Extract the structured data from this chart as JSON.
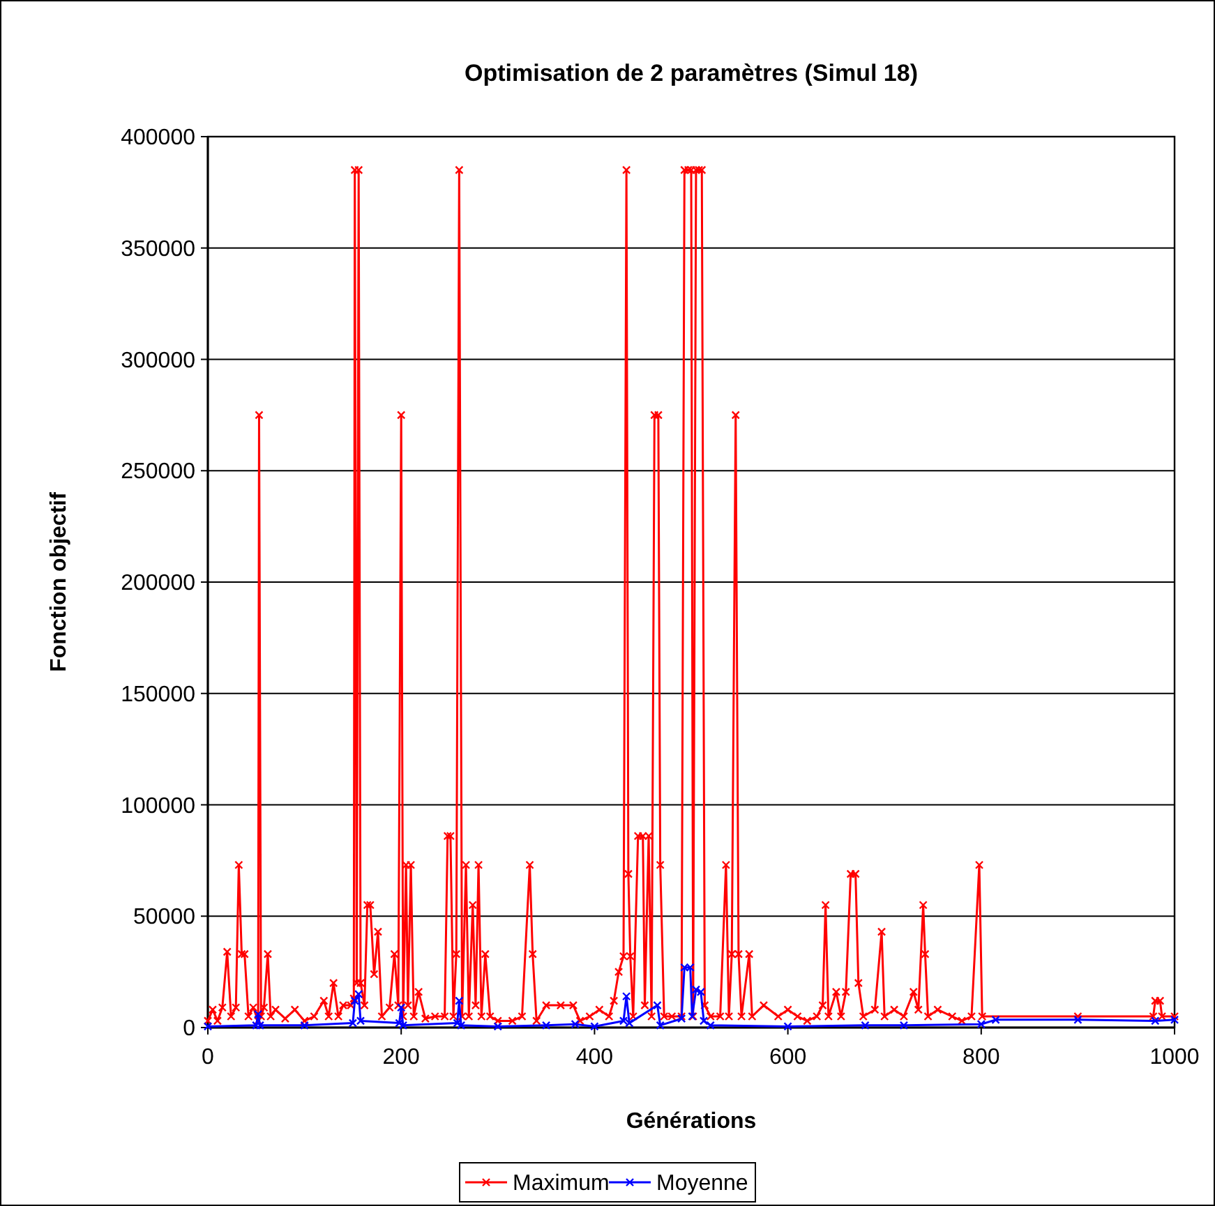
{
  "chart_data": {
    "type": "line",
    "title": "Optimisation de 2 paramètres (Simul 18)",
    "xlabel": "Générations",
    "ylabel": "Fonction objectif",
    "xlim": [
      0,
      1000
    ],
    "xticks": [
      0,
      200,
      400,
      600,
      800,
      1000
    ],
    "ylim": [
      0,
      400000
    ],
    "yticks": [
      0,
      50000,
      100000,
      150000,
      200000,
      250000,
      300000,
      350000,
      400000
    ],
    "grid": "y",
    "legend": "bottom",
    "marker": "cross",
    "line_style": "solid",
    "series": [
      {
        "name": "Maximum",
        "color": "#ff0000",
        "x": [
          0,
          5,
          10,
          15,
          20,
          24,
          29,
          32,
          35,
          38,
          42,
          47,
          52,
          53,
          55,
          58,
          62,
          65,
          70,
          80,
          90,
          100,
          110,
          120,
          125,
          130,
          135,
          140,
          148,
          151,
          152,
          154,
          156,
          158,
          162,
          165,
          168,
          172,
          176,
          180,
          188,
          193,
          197,
          200,
          202,
          205,
          207,
          210,
          213,
          218,
          225,
          235,
          245,
          248,
          251,
          254,
          257,
          260,
          263,
          267,
          270,
          274,
          277,
          280,
          283,
          287,
          292,
          300,
          315,
          325,
          333,
          336,
          340,
          350,
          365,
          378,
          385,
          395,
          405,
          415,
          420,
          425,
          430,
          433,
          435,
          437,
          440,
          445,
          450,
          452,
          456,
          459,
          462,
          466,
          468,
          472,
          480,
          490,
          493,
          497,
          500,
          502,
          505,
          508,
          511,
          514,
          520,
          530,
          536,
          539,
          542,
          546,
          549,
          552,
          560,
          563,
          575,
          590,
          600,
          610,
          620,
          630,
          636,
          639,
          642,
          650,
          655,
          660,
          665,
          670,
          673,
          678,
          690,
          697,
          700,
          710,
          720,
          730,
          735,
          740,
          742,
          745,
          755,
          770,
          780,
          790,
          798,
          801,
          900,
          978,
          980,
          985,
          987,
          1000
        ],
        "values": [
          3000,
          8000,
          3000,
          9000,
          34000,
          5000,
          9000,
          73000,
          33000,
          33000,
          5000,
          9000,
          3000,
          275000,
          5000,
          9000,
          33000,
          5000,
          8000,
          4000,
          8000,
          3000,
          5000,
          12000,
          5000,
          20000,
          5000,
          10000,
          10000,
          13000,
          385000,
          20000,
          385000,
          20000,
          10000,
          55000,
          55000,
          24000,
          43000,
          5000,
          9000,
          33000,
          10000,
          275000,
          5000,
          73000,
          10000,
          73000,
          5000,
          16000,
          4000,
          5000,
          5000,
          86000,
          86000,
          5000,
          33000,
          385000,
          5000,
          73000,
          5000,
          55000,
          10000,
          73000,
          5000,
          33000,
          5000,
          3000,
          3000,
          5000,
          73000,
          33000,
          3000,
          10000,
          10000,
          10000,
          3000,
          5000,
          8000,
          5000,
          12000,
          25000,
          32000,
          385000,
          69000,
          32000,
          5000,
          86000,
          86000,
          10000,
          86000,
          5000,
          275000,
          275000,
          73000,
          5000,
          5000,
          5000,
          385000,
          385000,
          385000,
          5000,
          385000,
          385000,
          385000,
          10000,
          5000,
          5000,
          73000,
          5000,
          33000,
          275000,
          33000,
          5000,
          33000,
          5000,
          10000,
          5000,
          8000,
          5000,
          3000,
          5000,
          10000,
          55000,
          5000,
          16000,
          5000,
          16000,
          69000,
          69000,
          20000,
          5000,
          8000,
          43000,
          5000,
          8000,
          5000,
          16000,
          8000,
          55000,
          33000,
          5000,
          8000,
          5000,
          3000,
          5000,
          73000,
          5000,
          5000,
          5000,
          12000,
          12000,
          5000,
          5000
        ]
      },
      {
        "name": "Moyenne",
        "color": "#0000ff",
        "x": [
          0,
          50,
          52,
          54,
          100,
          150,
          152,
          156,
          158,
          198,
          200,
          202,
          258,
          260,
          262,
          300,
          350,
          380,
          400,
          430,
          433,
          436,
          465,
          468,
          490,
          493,
          499,
          501,
          505,
          510,
          513,
          520,
          600,
          680,
          720,
          800,
          815,
          900,
          980,
          1000
        ],
        "values": [
          500,
          1000,
          6000,
          1000,
          1000,
          2000,
          12000,
          15000,
          3000,
          2000,
          9000,
          1000,
          2000,
          12000,
          1000,
          500,
          1000,
          1500,
          500,
          3000,
          14000,
          2000,
          10000,
          1000,
          4000,
          27000,
          27000,
          5000,
          17000,
          16000,
          3000,
          1000,
          500,
          1000,
          1000,
          1500,
          3500,
          3500,
          3000,
          3500
        ]
      }
    ]
  }
}
